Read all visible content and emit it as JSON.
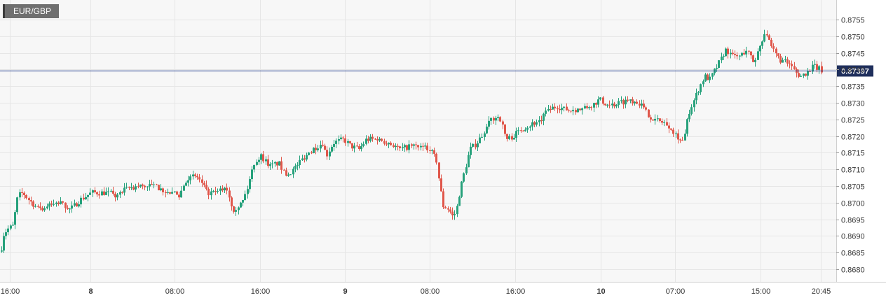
{
  "symbol": "EUR/GBP",
  "last_price_label": "0.87397",
  "colors": {
    "up": "#26a17b",
    "down": "#e0574b",
    "price_line": "#1f3a8a",
    "grid": "#e6e6e6",
    "plot_bg": "#f7f7f7"
  },
  "chart_data": {
    "type": "candlestick",
    "ylim": [
      0.8676,
      0.876
    ],
    "y_ticks": [
      "0.8755",
      "0.8750",
      "0.8745",
      "0.8740",
      "0.8735",
      "0.8730",
      "0.8725",
      "0.8720",
      "0.8715",
      "0.8710",
      "0.8705",
      "0.8700",
      "0.8695",
      "0.8690",
      "0.8685",
      "0.8680"
    ],
    "x_ticks": [
      {
        "label": "16:00",
        "bold": false
      },
      {
        "label": "8",
        "bold": true
      },
      {
        "label": "08:00",
        "bold": false
      },
      {
        "label": "16:00",
        "bold": false
      },
      {
        "label": "9",
        "bold": true
      },
      {
        "label": "08:00",
        "bold": false
      },
      {
        "label": "16:00",
        "bold": false
      },
      {
        "label": "10",
        "bold": true
      },
      {
        "label": "07:00",
        "bold": false
      },
      {
        "label": "15:00",
        "bold": false
      },
      {
        "label": "20:45",
        "bold": false
      }
    ],
    "last_price": 0.87397,
    "grid": true,
    "path": [
      [
        0,
        0.8683
      ],
      [
        3,
        0.869
      ],
      [
        10,
        0.8692
      ],
      [
        18,
        0.8693
      ],
      [
        25,
        0.8702
      ],
      [
        32,
        0.8703
      ],
      [
        40,
        0.8701
      ],
      [
        55,
        0.8698
      ],
      [
        70,
        0.8699
      ],
      [
        85,
        0.87
      ],
      [
        100,
        0.8698
      ],
      [
        115,
        0.8701
      ],
      [
        130,
        0.8703
      ],
      [
        150,
        0.8703
      ],
      [
        165,
        0.8702
      ],
      [
        180,
        0.8704
      ],
      [
        200,
        0.8705
      ],
      [
        220,
        0.8705
      ],
      [
        240,
        0.8703
      ],
      [
        255,
        0.8702
      ],
      [
        265,
        0.8707
      ],
      [
        280,
        0.8708
      ],
      [
        295,
        0.8703
      ],
      [
        310,
        0.8703
      ],
      [
        322,
        0.8705
      ],
      [
        332,
        0.8698
      ],
      [
        345,
        0.87
      ],
      [
        352,
        0.8704
      ],
      [
        362,
        0.8712
      ],
      [
        372,
        0.8714
      ],
      [
        385,
        0.8711
      ],
      [
        397,
        0.8712
      ],
      [
        407,
        0.8708
      ],
      [
        418,
        0.871
      ],
      [
        430,
        0.8713
      ],
      [
        445,
        0.8716
      ],
      [
        460,
        0.8718
      ],
      [
        465,
        0.8714
      ],
      [
        475,
        0.8718
      ],
      [
        490,
        0.8719
      ],
      [
        500,
        0.8717
      ],
      [
        512,
        0.8716
      ],
      [
        522,
        0.8719
      ],
      [
        540,
        0.8719
      ],
      [
        555,
        0.8718
      ],
      [
        570,
        0.8716
      ],
      [
        585,
        0.8717
      ],
      [
        600,
        0.8717
      ],
      [
        612,
        0.8716
      ],
      [
        622,
        0.8713
      ],
      [
        627,
        0.8705
      ],
      [
        632,
        0.8699
      ],
      [
        640,
        0.8698
      ],
      [
        645,
        0.8696
      ],
      [
        650,
        0.8697
      ],
      [
        656,
        0.8704
      ],
      [
        663,
        0.871
      ],
      [
        670,
        0.8716
      ],
      [
        680,
        0.8718
      ],
      [
        690,
        0.8721
      ],
      [
        700,
        0.8725
      ],
      [
        712,
        0.8726
      ],
      [
        722,
        0.8719
      ],
      [
        732,
        0.872
      ],
      [
        742,
        0.8722
      ],
      [
        752,
        0.8723
      ],
      [
        762,
        0.8724
      ],
      [
        772,
        0.8725
      ],
      [
        782,
        0.8728
      ],
      [
        795,
        0.8729
      ],
      [
        805,
        0.8728
      ],
      [
        818,
        0.8728
      ],
      [
        830,
        0.8728
      ],
      [
        842,
        0.8729
      ],
      [
        855,
        0.8731
      ],
      [
        868,
        0.8729
      ],
      [
        882,
        0.873
      ],
      [
        898,
        0.8731
      ],
      [
        912,
        0.873
      ],
      [
        922,
        0.8727
      ],
      [
        932,
        0.8725
      ],
      [
        945,
        0.8724
      ],
      [
        955,
        0.8723
      ],
      [
        962,
        0.8721
      ],
      [
        970,
        0.8719
      ],
      [
        976,
        0.872
      ],
      [
        982,
        0.8727
      ],
      [
        990,
        0.8731
      ],
      [
        998,
        0.8735
      ],
      [
        1005,
        0.8738
      ],
      [
        1012,
        0.8737
      ],
      [
        1020,
        0.874
      ],
      [
        1028,
        0.8743
      ],
      [
        1035,
        0.8746
      ],
      [
        1045,
        0.8744
      ],
      [
        1055,
        0.8744
      ],
      [
        1065,
        0.8746
      ],
      [
        1075,
        0.8742
      ],
      [
        1085,
        0.8748
      ],
      [
        1092,
        0.8752
      ],
      [
        1098,
        0.8747
      ],
      [
        1105,
        0.8745
      ],
      [
        1112,
        0.8743
      ],
      [
        1120,
        0.8742
      ],
      [
        1128,
        0.8741
      ],
      [
        1135,
        0.8739
      ],
      [
        1142,
        0.8738
      ],
      [
        1150,
        0.8739
      ],
      [
        1160,
        0.8741
      ],
      [
        1172,
        0.87397
      ]
    ]
  }
}
